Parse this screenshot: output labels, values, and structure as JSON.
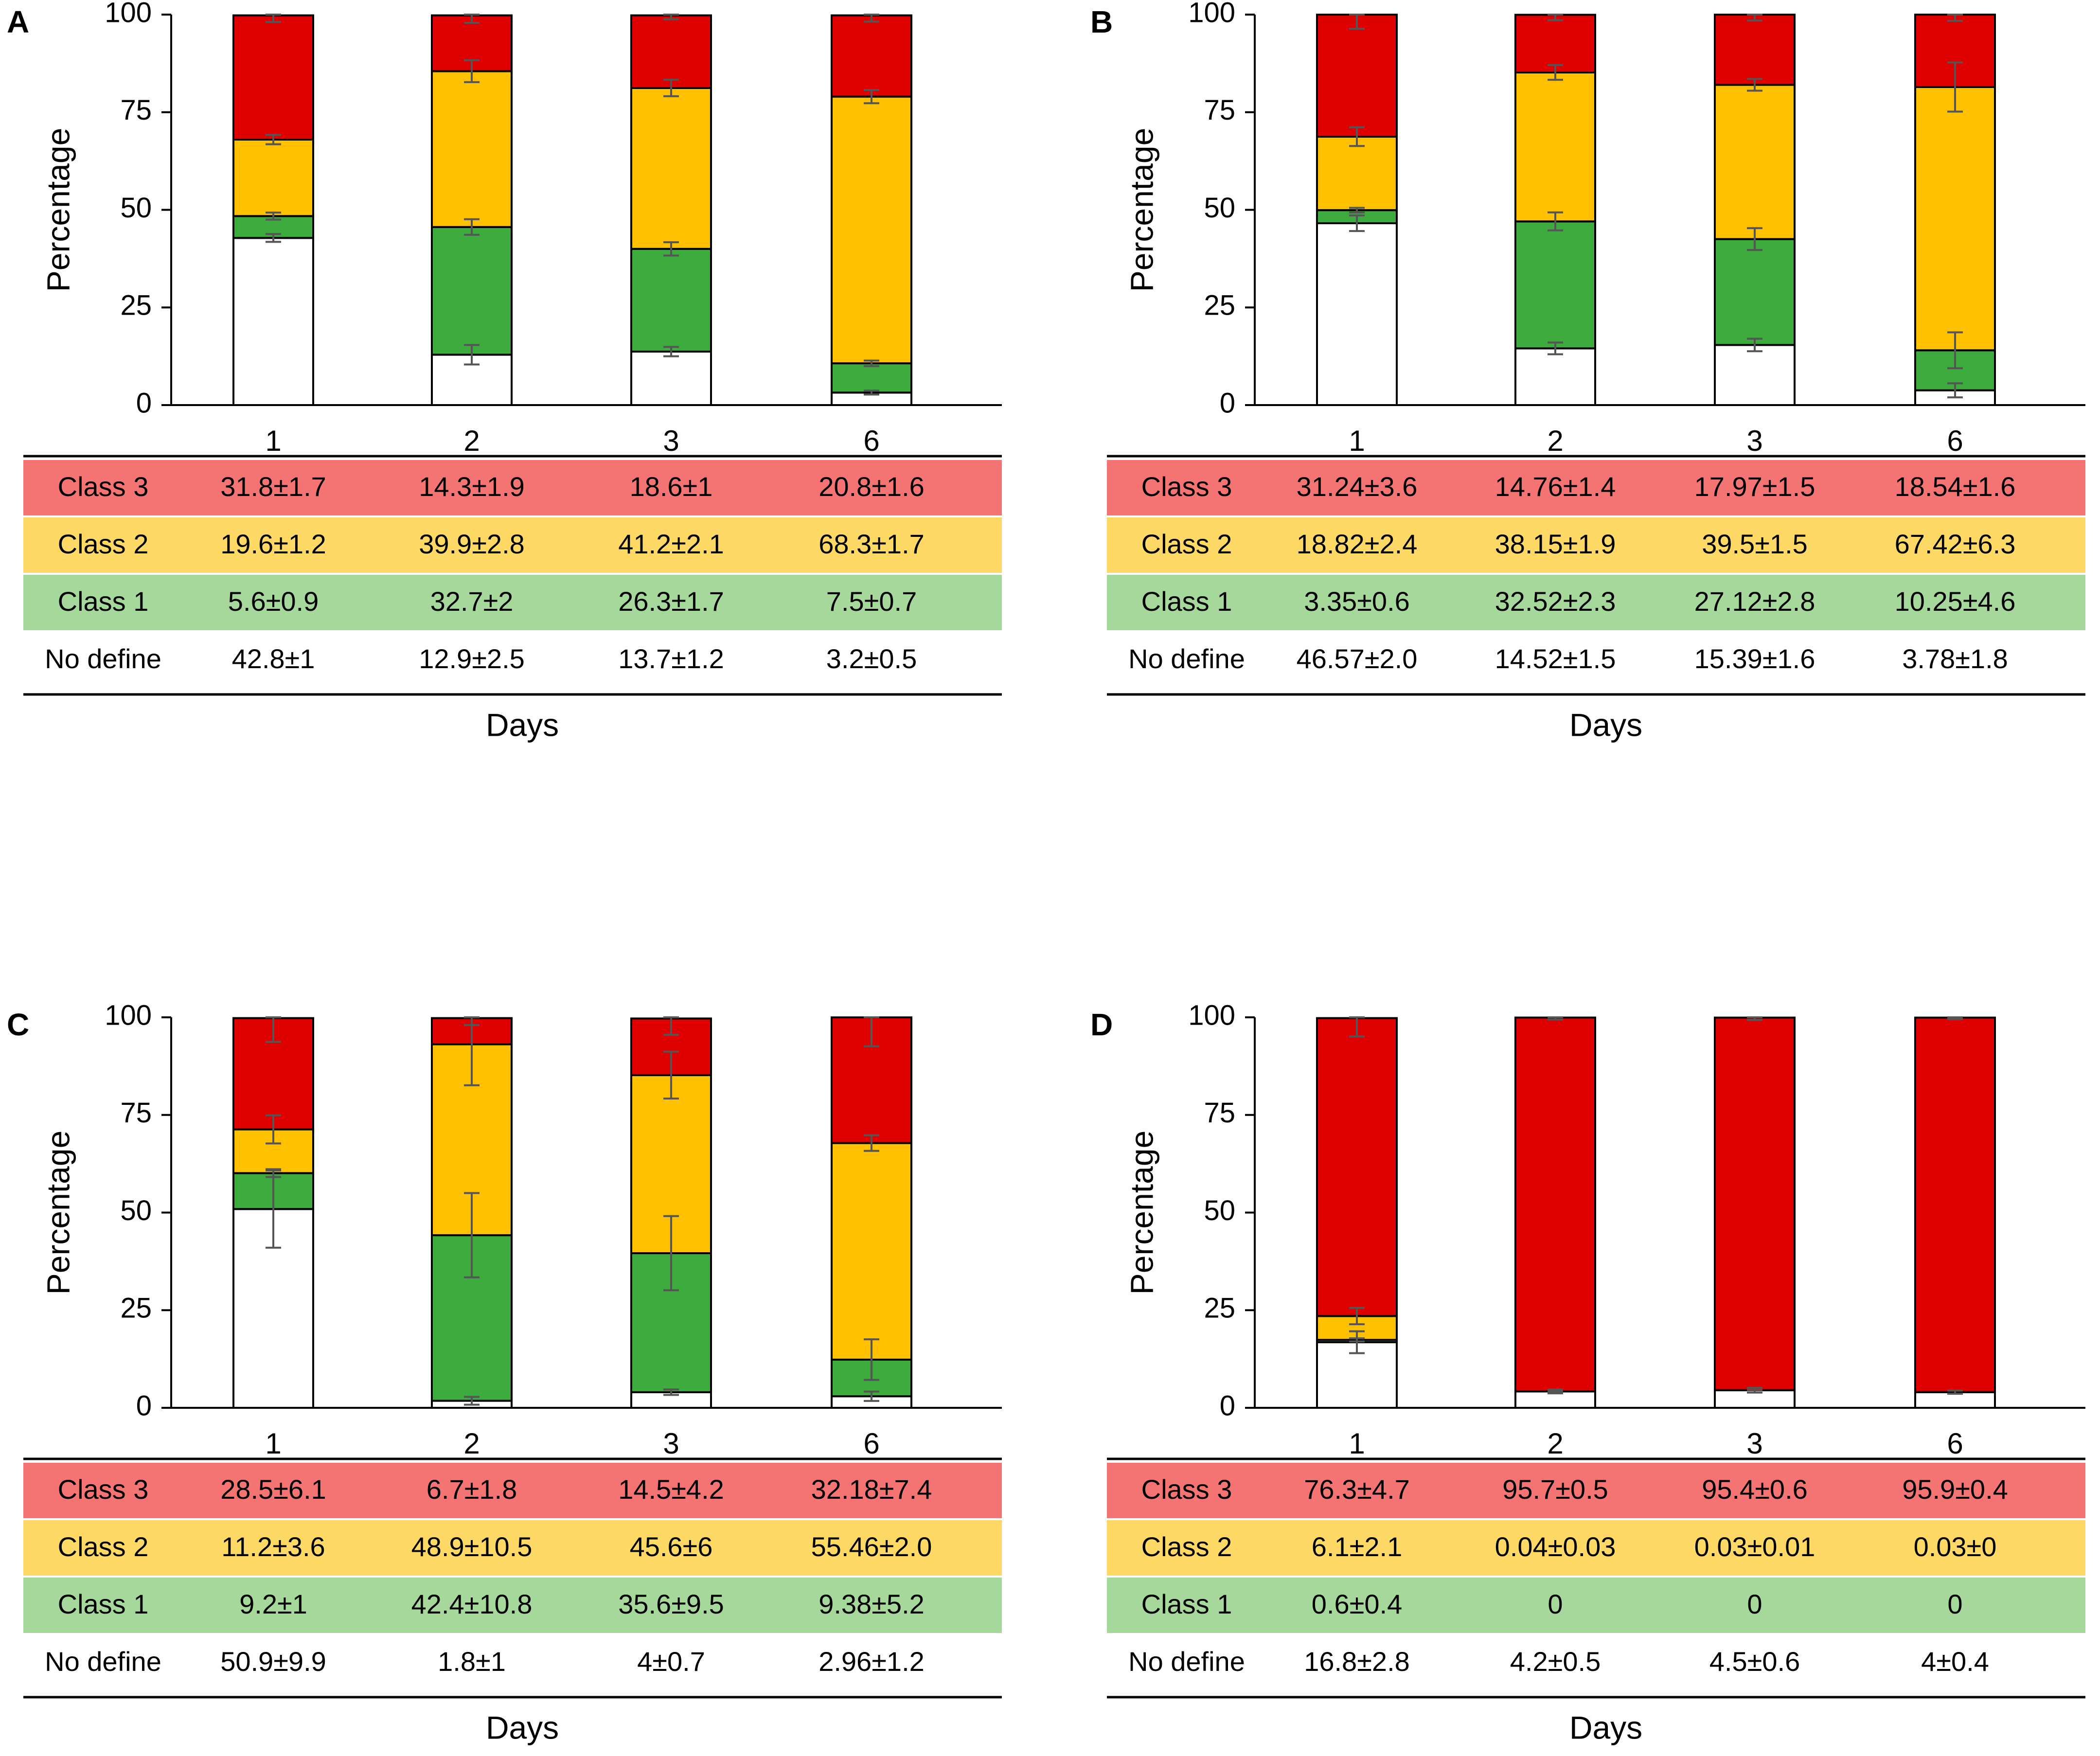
{
  "colors": {
    "class3_bar": "#DF0000",
    "class2_bar": "#FFC000",
    "class1_bar": "#3DAB3D",
    "nodefine_bar": "#FFFFFF",
    "class3_row": "#F47474",
    "class2_row": "#FFD966",
    "class1_row": "#A5D89A",
    "axis": "#000000",
    "error_bar": "#555555"
  },
  "chart_data": [
    {
      "panel": "A",
      "type": "bar",
      "stacked": true,
      "ylabel": "Percentage",
      "xlabel": "Days",
      "ylim": [
        0,
        100
      ],
      "yticks": [
        0,
        25,
        50,
        75,
        100
      ],
      "categories": [
        "1",
        "2",
        "3",
        "6"
      ],
      "series": [
        {
          "name": "No define",
          "values": [
            42.8,
            12.9,
            13.7,
            3.2
          ],
          "errors": [
            1,
            2.5,
            1.2,
            0.5
          ],
          "table": [
            "42.8±1",
            "12.9±2.5",
            "13.7±1.2",
            "3.2±0.5"
          ]
        },
        {
          "name": "Class 1",
          "values": [
            5.6,
            32.7,
            26.3,
            7.5
          ],
          "errors": [
            0.9,
            2,
            1.7,
            0.7
          ],
          "table": [
            "5.6±0.9",
            "32.7±2",
            "26.3±1.7",
            "7.5±0.7"
          ]
        },
        {
          "name": "Class 2",
          "values": [
            19.6,
            39.9,
            41.2,
            68.3
          ],
          "errors": [
            1.2,
            2.8,
            2.1,
            1.7
          ],
          "table": [
            "19.6±1.2",
            "39.9±2.8",
            "41.2±2.1",
            "68.3±1.7"
          ]
        },
        {
          "name": "Class 3",
          "values": [
            31.8,
            14.3,
            18.6,
            20.8
          ],
          "errors": [
            1.7,
            1.9,
            1,
            1.6
          ],
          "table": [
            "31.8±1.7",
            "14.3±1.9",
            "18.6±1",
            "20.8±1.6"
          ]
        }
      ]
    },
    {
      "panel": "B",
      "type": "bar",
      "stacked": true,
      "ylabel": "Percentage",
      "xlabel": "Days",
      "ylim": [
        0,
        100
      ],
      "yticks": [
        0,
        25,
        50,
        75,
        100
      ],
      "categories": [
        "1",
        "2",
        "3",
        "6"
      ],
      "series": [
        {
          "name": "No define",
          "values": [
            46.57,
            14.52,
            15.39,
            3.78
          ],
          "errors": [
            2.0,
            1.5,
            1.6,
            1.8
          ],
          "table": [
            "46.57±2.0",
            "14.52±1.5",
            "15.39±1.6",
            "3.78±1.8"
          ]
        },
        {
          "name": "Class 1",
          "values": [
            3.35,
            32.52,
            27.12,
            10.25
          ],
          "errors": [
            0.6,
            2.3,
            2.8,
            4.6
          ],
          "table": [
            "3.35±0.6",
            "32.52±2.3",
            "27.12±2.8",
            "10.25±4.6"
          ]
        },
        {
          "name": "Class 2",
          "values": [
            18.82,
            38.15,
            39.5,
            67.42
          ],
          "errors": [
            2.4,
            1.9,
            1.5,
            6.3
          ],
          "table": [
            "18.82±2.4",
            "38.15±1.9",
            "39.5±1.5",
            "67.42±6.3"
          ]
        },
        {
          "name": "Class 3",
          "values": [
            31.24,
            14.76,
            17.97,
            18.54
          ],
          "errors": [
            3.6,
            1.4,
            1.5,
            1.6
          ],
          "table": [
            "31.24±3.6",
            "14.76±1.4",
            "17.97±1.5",
            "18.54±1.6"
          ]
        }
      ]
    },
    {
      "panel": "C",
      "type": "bar",
      "stacked": true,
      "ylabel": "Percentage",
      "xlabel": "Days",
      "ylim": [
        0,
        100
      ],
      "yticks": [
        0,
        25,
        50,
        75,
        100
      ],
      "categories": [
        "1",
        "2",
        "3",
        "6"
      ],
      "series": [
        {
          "name": "No define",
          "values": [
            50.9,
            1.8,
            4,
            2.96
          ],
          "errors": [
            9.9,
            1,
            0.7,
            1.2
          ],
          "table": [
            "50.9±9.9",
            "1.8±1",
            "4±0.7",
            "2.96±1.2"
          ]
        },
        {
          "name": "Class 1",
          "values": [
            9.2,
            42.4,
            35.6,
            9.38
          ],
          "errors": [
            1,
            10.8,
            9.5,
            5.2
          ],
          "table": [
            "9.2±1",
            "42.4±10.8",
            "35.6±9.5",
            "9.38±5.2"
          ]
        },
        {
          "name": "Class 2",
          "values": [
            11.2,
            48.9,
            45.6,
            55.46
          ],
          "errors": [
            3.6,
            10.5,
            6,
            2.0
          ],
          "table": [
            "11.2±3.6",
            "48.9±10.5",
            "45.6±6",
            "55.46±2.0"
          ]
        },
        {
          "name": "Class 3",
          "values": [
            28.5,
            6.7,
            14.5,
            32.18
          ],
          "errors": [
            6.1,
            1.8,
            4.2,
            7.4
          ],
          "table": [
            "28.5±6.1",
            "6.7±1.8",
            "14.5±4.2",
            "32.18±7.4"
          ]
        }
      ]
    },
    {
      "panel": "D",
      "type": "bar",
      "stacked": true,
      "ylabel": "Percentage",
      "xlabel": "Days",
      "ylim": [
        0,
        100
      ],
      "yticks": [
        0,
        25,
        50,
        75,
        100
      ],
      "categories": [
        "1",
        "2",
        "3",
        "6"
      ],
      "series": [
        {
          "name": "No define",
          "values": [
            16.8,
            4.2,
            4.5,
            4
          ],
          "errors": [
            2.8,
            0.5,
            0.6,
            0.4
          ],
          "table": [
            "16.8±2.8",
            "4.2±0.5",
            "4.5±0.6",
            "4±0.4"
          ]
        },
        {
          "name": "Class 1",
          "values": [
            0.6,
            0,
            0,
            0
          ],
          "errors": [
            0.4,
            0,
            0,
            0
          ],
          "table": [
            "0.6±0.4",
            "0",
            "0",
            "0"
          ]
        },
        {
          "name": "Class 2",
          "values": [
            6.1,
            0.04,
            0.03,
            0.03
          ],
          "errors": [
            2.1,
            0.03,
            0.01,
            0
          ],
          "table": [
            "6.1±2.1",
            "0.04±0.03",
            "0.03±0.01",
            "0.03±0"
          ]
        },
        {
          "name": "Class 3",
          "values": [
            76.3,
            95.7,
            95.4,
            95.9
          ],
          "errors": [
            4.7,
            0.5,
            0.6,
            0.4
          ],
          "table": [
            "76.3±4.7",
            "95.7±0.5",
            "95.4±0.6",
            "95.9±0.4"
          ]
        }
      ]
    }
  ]
}
